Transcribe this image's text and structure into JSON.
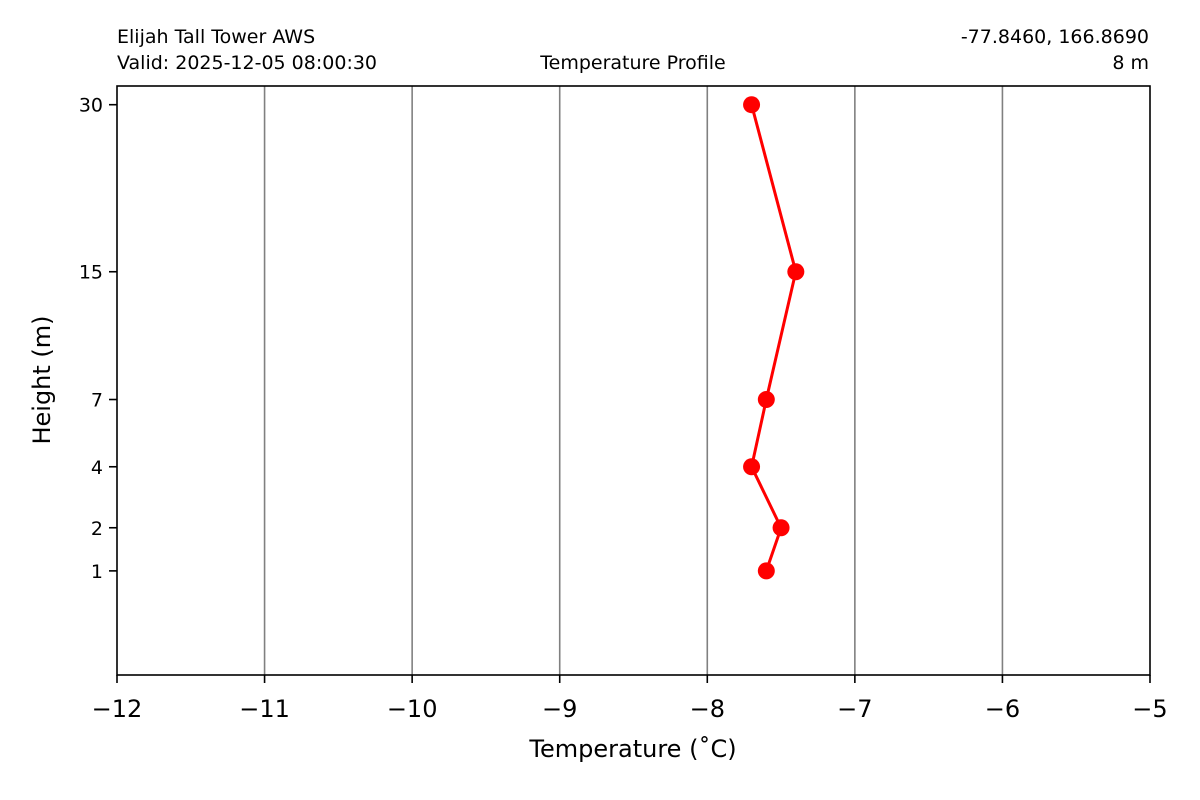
{
  "header": {
    "station": "Elijah Tall Tower AWS",
    "valid": "Valid: 2025-12-05 08:00:30",
    "title": "Temperature Profile",
    "coords": "-77.8460, 166.8690",
    "elevation": "8 m"
  },
  "chart_data": {
    "type": "line",
    "title": "Temperature Profile",
    "xlabel": "Temperature ($^\\circ$C)",
    "xlabel_display": "Temperature (˚C)",
    "ylabel": "Height (m)",
    "xlim": [
      -12,
      -5
    ],
    "ylim": [
      0,
      32
    ],
    "x_ticks": [
      -12,
      -11,
      -10,
      -9,
      -8,
      -7,
      -6,
      -5
    ],
    "x_tick_labels": [
      "−12",
      "−11",
      "−10",
      "−9",
      "−8",
      "−7",
      "−6",
      "−5"
    ],
    "y_ticks": [
      1,
      2,
      4,
      7,
      15,
      30
    ],
    "y_tick_labels": [
      "1",
      "2",
      "4",
      "7",
      "15",
      "30"
    ],
    "y_scale": "sqrt",
    "grid": "vertical",
    "series": [
      {
        "color": "#ff0000",
        "points": [
          {
            "temperature": -7.6,
            "height": 1
          },
          {
            "temperature": -7.5,
            "height": 2
          },
          {
            "temperature": -7.7,
            "height": 4
          },
          {
            "temperature": -7.6,
            "height": 7
          },
          {
            "temperature": -7.4,
            "height": 15
          },
          {
            "temperature": -7.7,
            "height": 30
          }
        ]
      }
    ]
  },
  "colors": {
    "series": "#ff0000",
    "grid": "#808080",
    "axes": "#000000"
  }
}
